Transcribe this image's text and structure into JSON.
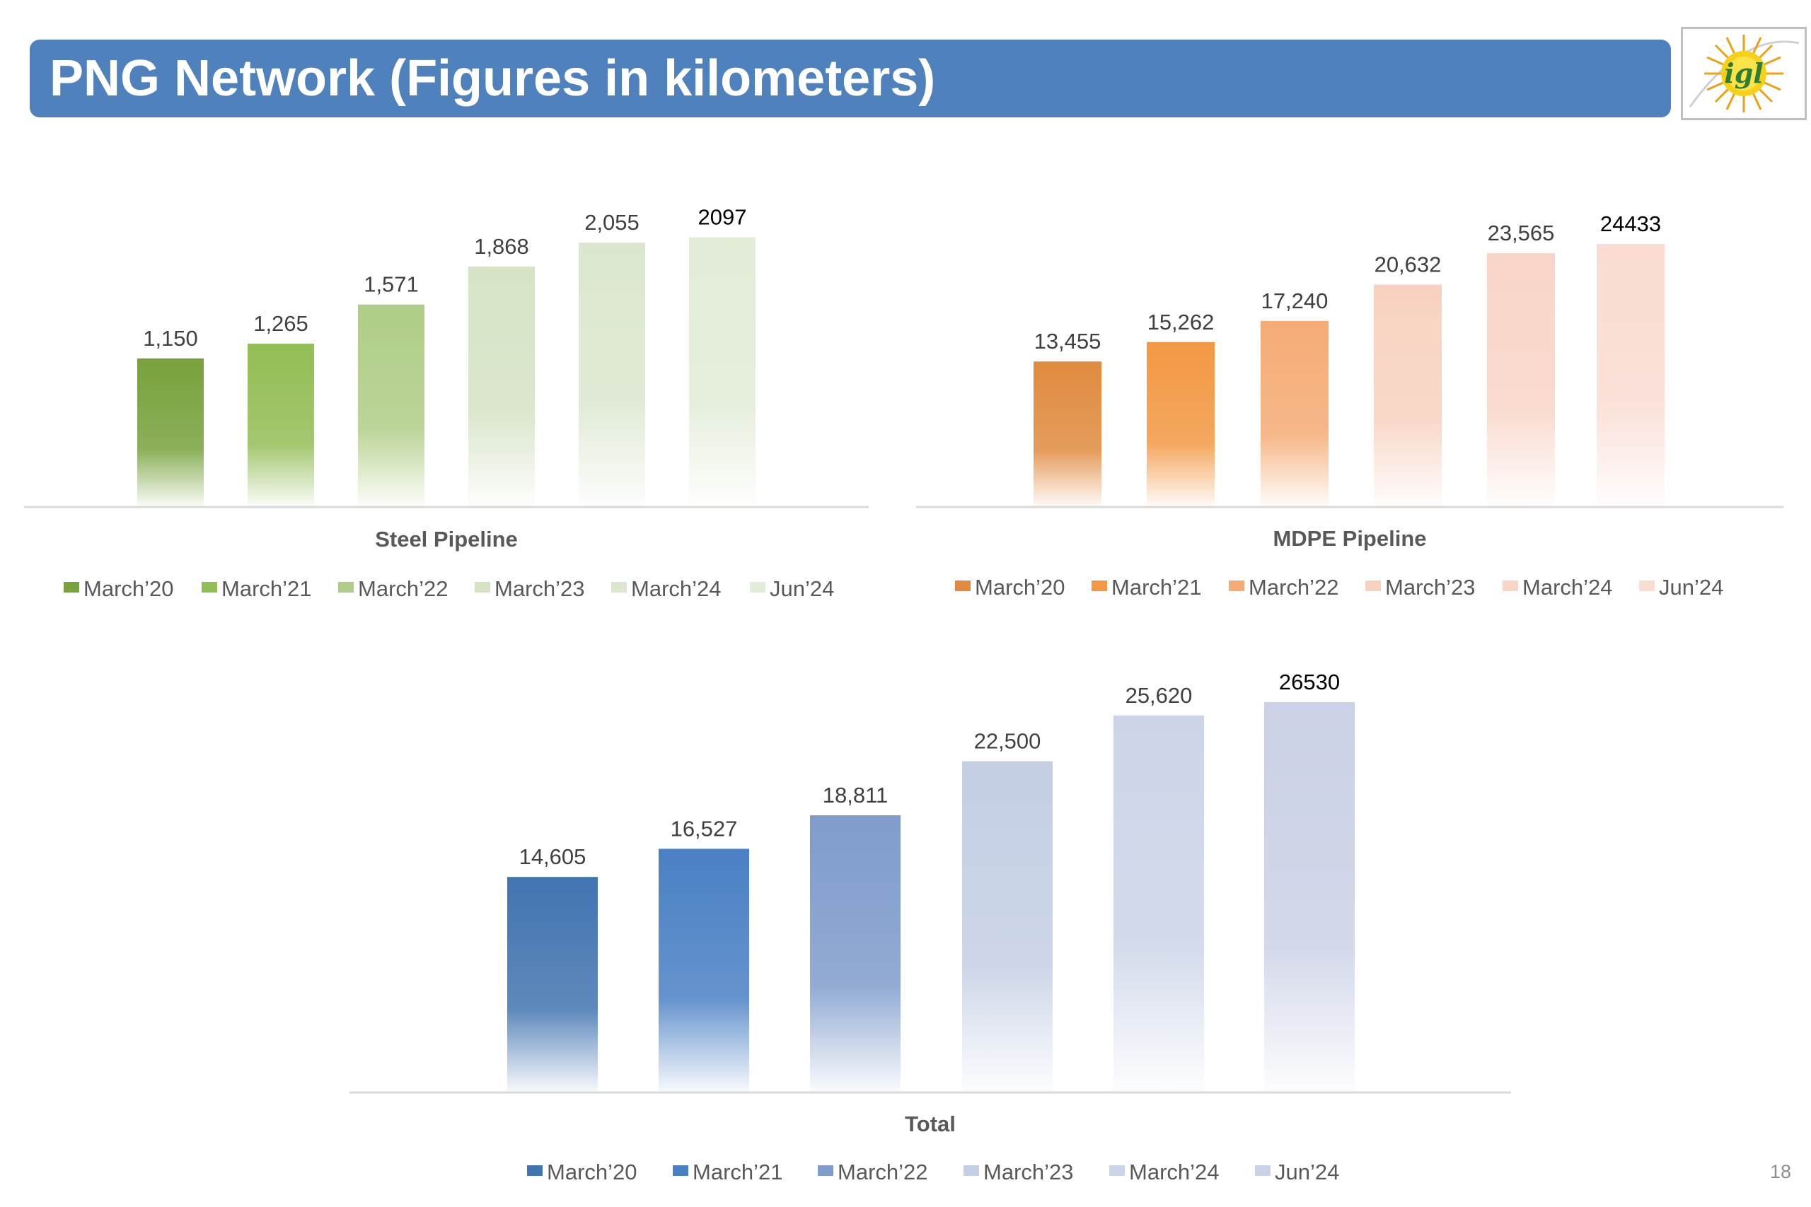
{
  "page": {
    "title": "PNG Network (Figures in kilometers)",
    "page_number": "18",
    "logo_text": "igl"
  },
  "colors": {
    "banner": "#4f81bd",
    "steel": [
      "#77a23c",
      "#93bd55",
      "#afcd86",
      "#d6e3c5",
      "#dce7cf",
      "#e2ecd7"
    ],
    "mdpe": [
      "#e08b3f",
      "#f39843",
      "#f5ab75",
      "#f8d2c0",
      "#f9d5c8",
      "#fadcd2"
    ],
    "total": [
      "#4274b0",
      "#4a80c4",
      "#7f9ccc",
      "#c4cfe4",
      "#ccd5e8",
      "#cbd1e6"
    ]
  },
  "chart_data": [
    {
      "type": "bar",
      "title": "Steel Pipeline",
      "categories": [
        "March’20",
        "March’21",
        "March’22",
        "March’23",
        "March’24",
        "Jun’24"
      ],
      "values": [
        1150,
        1265,
        1571,
        1868,
        2055,
        2097
      ],
      "labels": [
        "1,150",
        "1,265",
        "1,571",
        "1,868",
        "2,055",
        "2097"
      ],
      "ylim": [
        0,
        2100
      ],
      "grid": false,
      "legend": "bottom"
    },
    {
      "type": "bar",
      "title": "MDPE Pipeline",
      "categories": [
        "March’20",
        "March’21",
        "March’22",
        "March’23",
        "March’24",
        "Jun’24"
      ],
      "values": [
        13455,
        15262,
        17240,
        20632,
        23565,
        24433
      ],
      "labels": [
        "13,455",
        "15,262",
        "17,240",
        "20,632",
        "23,565",
        "24433"
      ],
      "ylim": [
        0,
        24433
      ],
      "grid": false,
      "legend": "bottom"
    },
    {
      "type": "bar",
      "title": "Total",
      "categories": [
        "March’20",
        "March’21",
        "March’22",
        "March’23",
        "March’24",
        "Jun’24"
      ],
      "values": [
        14605,
        16527,
        18811,
        22500,
        25620,
        26530
      ],
      "labels": [
        "14,605",
        "16,527",
        "18,811",
        "22,500",
        "25,620",
        "26530"
      ],
      "ylim": [
        0,
        26530
      ],
      "grid": false,
      "legend": "bottom"
    }
  ]
}
